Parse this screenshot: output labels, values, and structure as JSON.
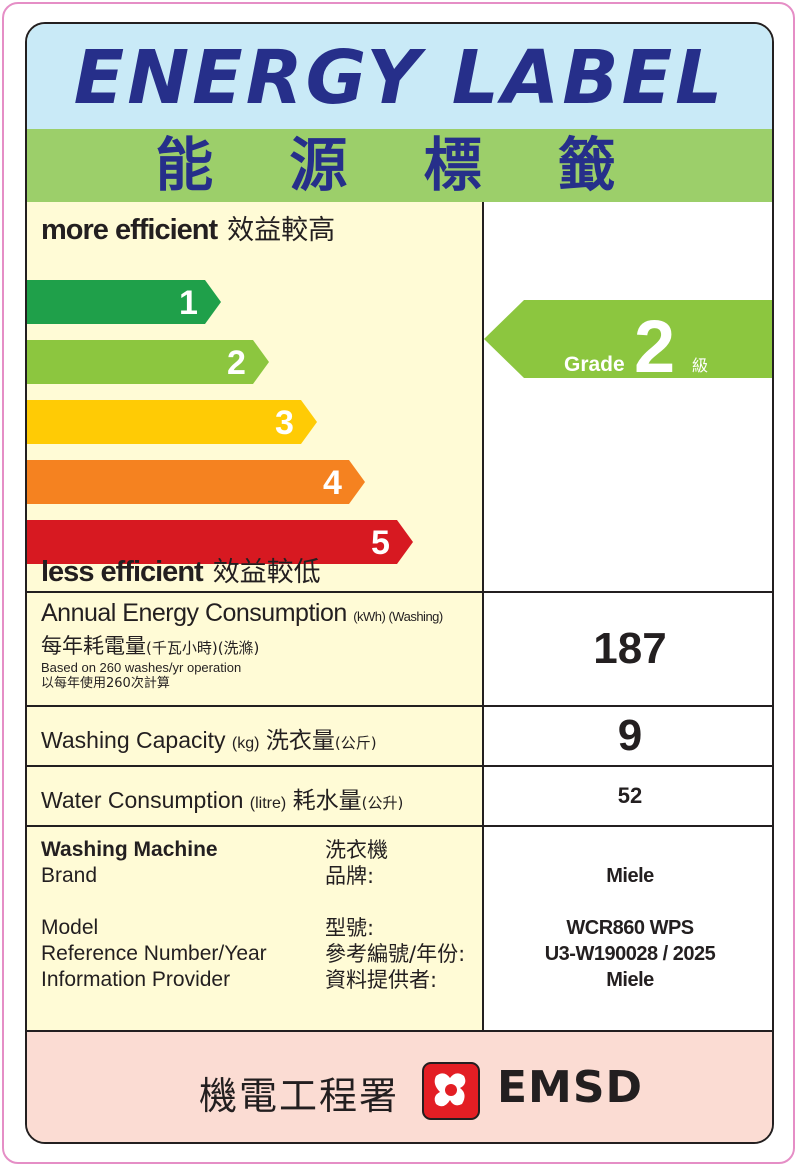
{
  "header": {
    "title_en": "ENERGY LABEL",
    "title_zh": "能 源 標 籤"
  },
  "scale": {
    "more_en": "more efficient",
    "more_zh": "效益較高",
    "less_en": "less efficient",
    "less_zh": "效益較低",
    "grades": [
      {
        "label": "1",
        "color": "#1fa04a"
      },
      {
        "label": "2",
        "color": "#8cc63f"
      },
      {
        "label": "3",
        "color": "#ffcb05"
      },
      {
        "label": "4",
        "color": "#f58220"
      },
      {
        "label": "5",
        "color": "#d71921"
      }
    ]
  },
  "rating": {
    "prefix": "Grade",
    "value": "2",
    "suffix": "級",
    "color": "#8cc63f"
  },
  "annual": {
    "label_en": "Annual Energy Consumption",
    "unit_en": "(kWh) (Washing)",
    "label_zh": "每年耗電量",
    "unit_zh": "(千瓦小時)(洗滌)",
    "note_en": "Based on 260 washes/yr operation",
    "note_zh": "以每年使用260次計算",
    "value": "187"
  },
  "capacity": {
    "label_en": "Washing Capacity",
    "unit_en": "(kg)",
    "label_zh": "洗衣量",
    "unit_zh": "(公斤)",
    "value": "9"
  },
  "water": {
    "label_en": "Water Consumption",
    "unit_en": "(litre)",
    "label_zh": "耗水量",
    "unit_zh": "(公升)",
    "value": "52"
  },
  "info": {
    "appliance_en": "Washing Machine",
    "appliance_zh": "洗衣機",
    "brand_en": "Brand",
    "brand_zh": "品牌:",
    "brand_value": "Miele",
    "model_en": "Model",
    "model_zh": "型號:",
    "model_value": "WCR860 WPS",
    "ref_en": "Reference Number/Year",
    "ref_zh": "參考編號/年份:",
    "ref_value": "U3-W190028 / 2025",
    "provider_en": "Information Provider",
    "provider_zh": "資料提供者:",
    "provider_value": "Miele"
  },
  "footer": {
    "agency_zh": "機電工程署",
    "agency_en": "EMSD",
    "logo_color": "#e31e24"
  }
}
